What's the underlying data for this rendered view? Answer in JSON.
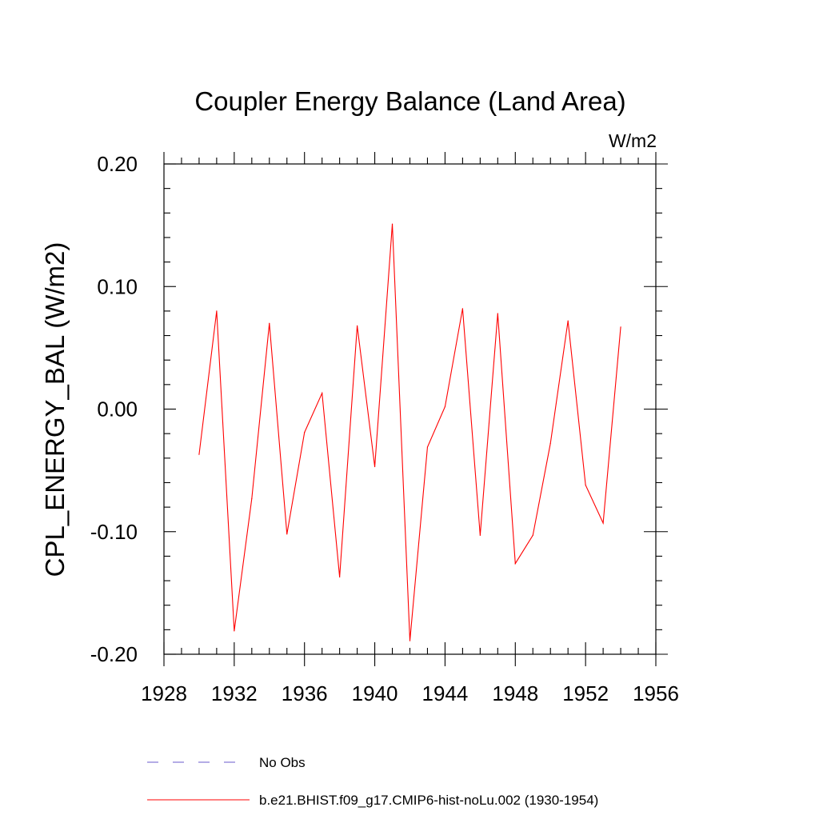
{
  "chart_data": {
    "type": "line",
    "title": "Coupler Energy Balance (Land Area)",
    "units_label": "W/m2",
    "ylabel": "CPL_ENERGY_BAL  (W/m2)",
    "xlabel": "",
    "xlim": [
      1928,
      1956
    ],
    "ylim": [
      -0.2,
      0.2
    ],
    "x_major_ticks": [
      1928,
      1932,
      1936,
      1940,
      1944,
      1948,
      1952,
      1956
    ],
    "x_tick_labels": [
      "1928",
      "1932",
      "1936",
      "1940",
      "1944",
      "1948",
      "1952",
      "1956"
    ],
    "x_minor_step": 1,
    "y_major_ticks": [
      -0.2,
      -0.1,
      0.0,
      0.1,
      0.2
    ],
    "y_tick_labels": [
      "-0.20",
      "-0.10",
      "0.00",
      "0.10",
      "0.20"
    ],
    "y_minor_step": 0.02,
    "grid": false,
    "legend_position": "bottom",
    "series": [
      {
        "name": "No Obs",
        "color": "#6a5acd",
        "style": "dashed",
        "x": [],
        "values": []
      },
      {
        "name": "b.e21.BHIST.f09_g17.CMIP6-hist-noLu.002 (1930-1954)",
        "color": "#ff0000",
        "style": "solid",
        "x": [
          1930,
          1931,
          1932,
          1933,
          1934,
          1935,
          1936,
          1937,
          1938,
          1939,
          1940,
          1941,
          1942,
          1943,
          1944,
          1945,
          1946,
          1947,
          1948,
          1949,
          1950,
          1951,
          1952,
          1953,
          1954
        ],
        "values": [
          -0.037,
          0.08,
          -0.181,
          -0.073,
          0.07,
          -0.102,
          -0.019,
          0.013,
          -0.137,
          0.068,
          -0.047,
          0.151,
          -0.189,
          -0.031,
          0.002,
          0.082,
          -0.103,
          0.078,
          -0.126,
          -0.103,
          -0.028,
          0.072,
          -0.062,
          -0.093,
          0.067
        ]
      }
    ]
  }
}
